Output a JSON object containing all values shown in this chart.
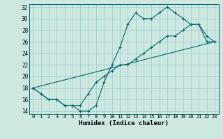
{
  "xlabel": "Humidex (Indice chaleur)",
  "bg_color": "#cce8e0",
  "grid_color": "#99cccc",
  "line_color": "#006666",
  "xlim": [
    -0.5,
    23.5
  ],
  "ylim": [
    13.5,
    32.5
  ],
  "xticks": [
    0,
    1,
    2,
    3,
    4,
    5,
    6,
    7,
    8,
    9,
    10,
    11,
    12,
    13,
    14,
    15,
    16,
    17,
    18,
    19,
    20,
    21,
    22,
    23
  ],
  "yticks": [
    14,
    16,
    18,
    20,
    22,
    24,
    26,
    28,
    30,
    32
  ],
  "curve1_x": [
    0,
    1,
    2,
    3,
    4,
    5,
    6,
    7,
    8,
    9,
    10,
    11,
    12,
    13,
    14,
    15,
    16,
    17,
    18,
    19,
    20,
    21,
    22,
    23
  ],
  "curve1_y": [
    18,
    17,
    16,
    16,
    15,
    15,
    14,
    14,
    15,
    19,
    22,
    25,
    29,
    31,
    30,
    30,
    31,
    32,
    31,
    30,
    29,
    29,
    27,
    26
  ],
  "curve2_x": [
    0,
    2,
    3,
    4,
    5,
    6,
    7,
    8,
    9,
    10,
    11,
    12,
    13,
    14,
    15,
    16,
    17,
    18,
    19,
    20,
    21,
    22,
    23
  ],
  "curve2_y": [
    18,
    16,
    16,
    15,
    15,
    15,
    17,
    19,
    20,
    21,
    22,
    22,
    23,
    24,
    25,
    26,
    27,
    27,
    28,
    29,
    29,
    26,
    26
  ],
  "curve3_x": [
    0,
    23
  ],
  "curve3_y": [
    18,
    26
  ]
}
